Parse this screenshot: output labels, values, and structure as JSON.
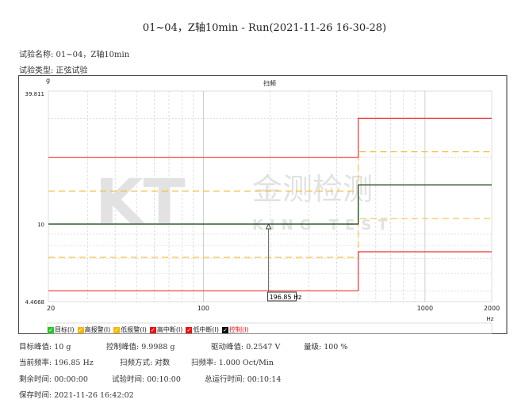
{
  "title": "01~04，Z轴10min - Run(2021-11-26 16-30-28)",
  "test_name": "试验名称: 01~04，Z轴10min",
  "test_type": "试验类型: 正弦试验",
  "chart_data": {
    "type": "line",
    "title": "扫频",
    "ylabel": "g",
    "xlabel": "Hz",
    "x_scale": "log",
    "y_scale": "log",
    "xlim": [
      20,
      2000
    ],
    "ylim": [
      4.4668,
      39.811
    ],
    "x_ticks": [
      "20",
      "100",
      "1000",
      "2000"
    ],
    "y_ticks": [
      "39.811",
      "10",
      "4.4668"
    ],
    "grid": true,
    "cursor_label": "196.85 Hz",
    "cursor_freq": 196.85,
    "series": [
      {
        "name": "目标",
        "color": "#00cc00",
        "points": [
          [
            20,
            10
          ],
          [
            500,
            10
          ],
          [
            500,
            15
          ],
          [
            2000,
            15
          ]
        ]
      },
      {
        "name": "高报警",
        "color": "#f5c242",
        "dashed": true,
        "points": [
          [
            20,
            14.1
          ],
          [
            500,
            14.1
          ],
          [
            500,
            21.2
          ],
          [
            2000,
            21.2
          ]
        ]
      },
      {
        "name": "低报警",
        "color": "#f5c242",
        "dashed": true,
        "points": [
          [
            20,
            7.08
          ],
          [
            500,
            7.08
          ],
          [
            500,
            10.6
          ],
          [
            2000,
            10.6
          ]
        ]
      },
      {
        "name": "高中断",
        "color": "#ee3333",
        "points": [
          [
            20,
            20
          ],
          [
            500,
            20
          ],
          [
            500,
            30
          ],
          [
            2000,
            30
          ]
        ]
      },
      {
        "name": "低中断",
        "color": "#ee3333",
        "points": [
          [
            20,
            5
          ],
          [
            500,
            5
          ],
          [
            500,
            7.5
          ],
          [
            2000,
            7.5
          ]
        ]
      },
      {
        "name": "控制",
        "color": "#111111",
        "points": [
          [
            20,
            10
          ],
          [
            500,
            10
          ],
          [
            500,
            15
          ],
          [
            2000,
            15
          ]
        ]
      }
    ]
  },
  "legend": [
    {
      "label": "目标(I)",
      "color": "#22cc22",
      "text_color": "#222"
    },
    {
      "label": "高报警(I)",
      "color": "#f5b800",
      "text_color": "#222"
    },
    {
      "label": "低报警(I)",
      "color": "#f5b800",
      "text_color": "#222"
    },
    {
      "label": "高中断(I)",
      "color": "#ee1111",
      "text_color": "#222"
    },
    {
      "label": "低中断(I)",
      "color": "#ee1111",
      "text_color": "#222"
    },
    {
      "label": "控制(I)",
      "color": "#111111",
      "text_color": "#ee1111"
    }
  ],
  "watermark": "KT 金测检测 KING TEST",
  "stats": {
    "target_peak": "目标峰值: 10 g",
    "control_peak": "控制峰值: 9.9988 g",
    "drive_peak": "驱动峰值: 0.2547 V",
    "level": "量级: 100 %",
    "current_freq": "当前频率: 196.85 Hz",
    "sweep_mode": "扫频方式: 对数",
    "sweep_rate": "扫频率: 1.000 Oct/Min",
    "remaining": "剩余时间: 00:00:00",
    "test_time": "试验时间: 00:10:00",
    "total_time": "总运行时间: 00:10:14",
    "save_time": "保存时间: 2021-11-26 16:42:02"
  }
}
